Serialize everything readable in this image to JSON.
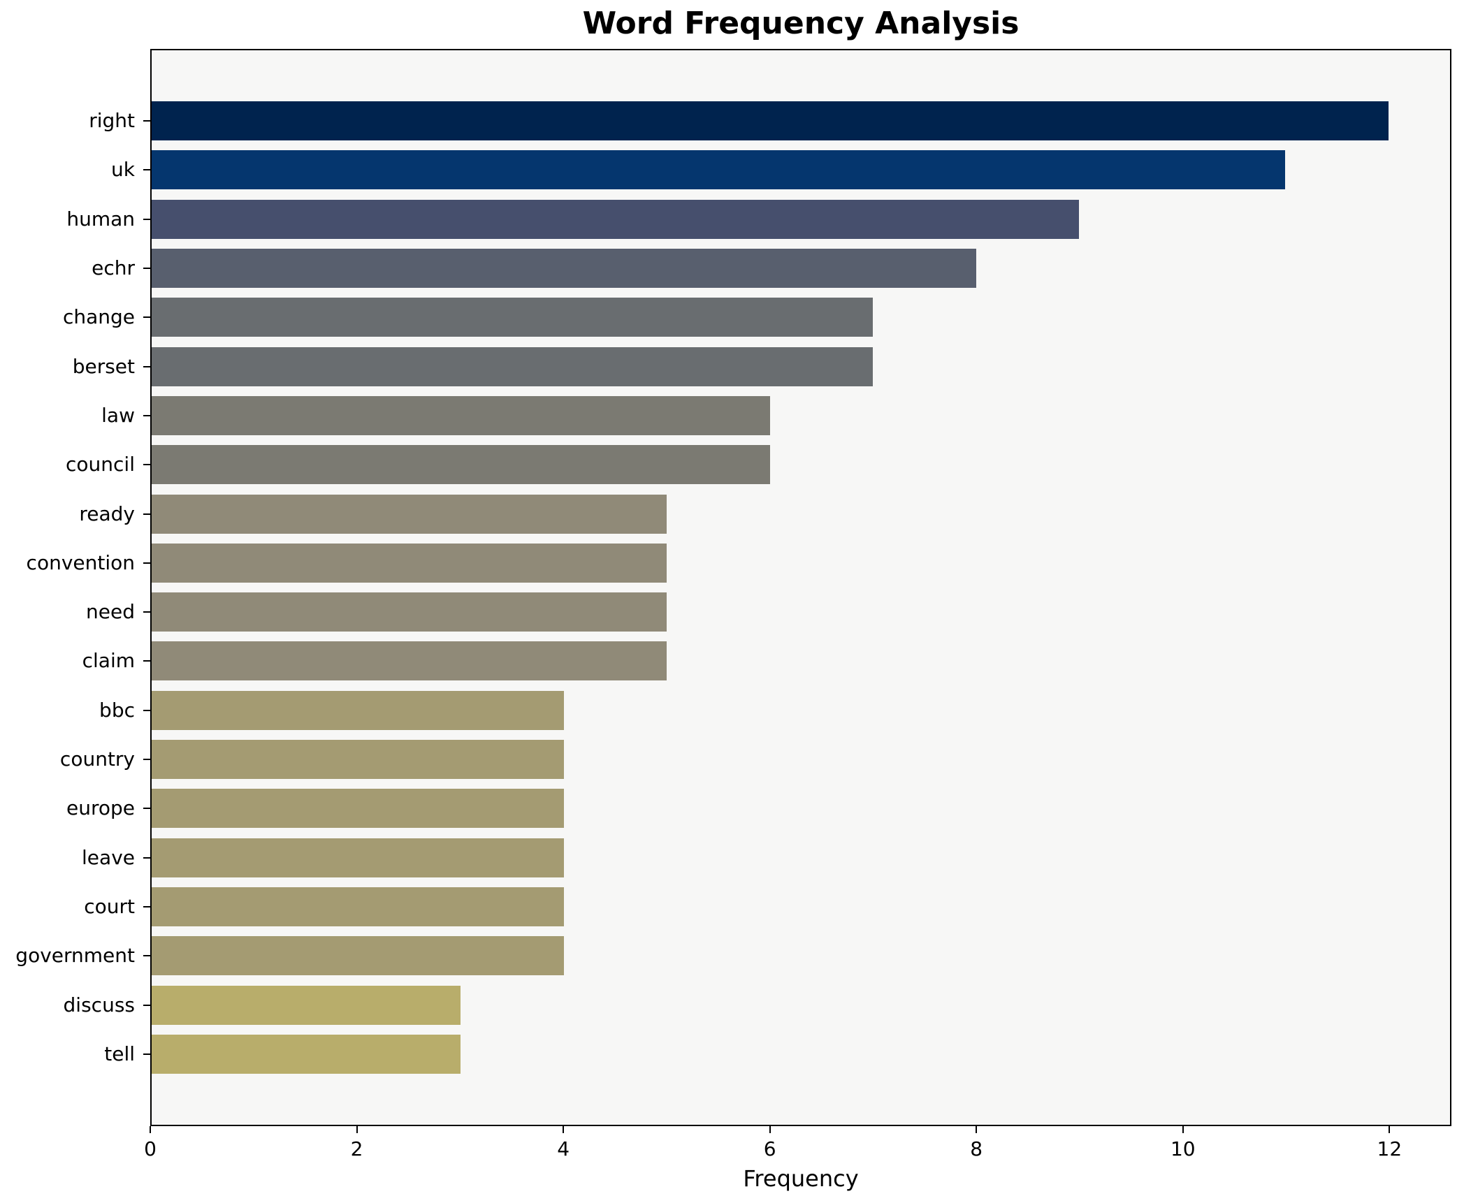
{
  "title": "Word Frequency Analysis",
  "xlabel": "Frequency",
  "figure_bg": "#ffffff",
  "plot_bg": "#f7f7f6",
  "spine_color": "#000000",
  "colormap": "cividis",
  "chart_data": {
    "type": "bar",
    "orientation": "horizontal",
    "title": "Word Frequency Analysis",
    "xlabel": "Frequency",
    "ylabel": "",
    "categories": [
      "right",
      "uk",
      "human",
      "echr",
      "change",
      "berset",
      "law",
      "council",
      "ready",
      "convention",
      "need",
      "claim",
      "bbc",
      "country",
      "europe",
      "leave",
      "court",
      "government",
      "discuss",
      "tell"
    ],
    "values": [
      12,
      11,
      9,
      8,
      7,
      7,
      6,
      6,
      5,
      5,
      5,
      5,
      4,
      4,
      4,
      4,
      4,
      4,
      3,
      3
    ],
    "bar_colors": [
      "#00234e",
      "#05366e",
      "#464f6d",
      "#585f6e",
      "#696d70",
      "#696d70",
      "#7b7a72",
      "#7b7a72",
      "#908a78",
      "#908a78",
      "#908a78",
      "#908a78",
      "#a49b72",
      "#a49b72",
      "#a49b72",
      "#a49b72",
      "#a49b72",
      "#a49b72",
      "#b8ad6b",
      "#b8ad6b"
    ],
    "x_ticks": [
      0,
      2,
      4,
      6,
      8,
      10,
      12
    ],
    "xlim": [
      0,
      12.6
    ],
    "grid": false,
    "legend": null
  }
}
